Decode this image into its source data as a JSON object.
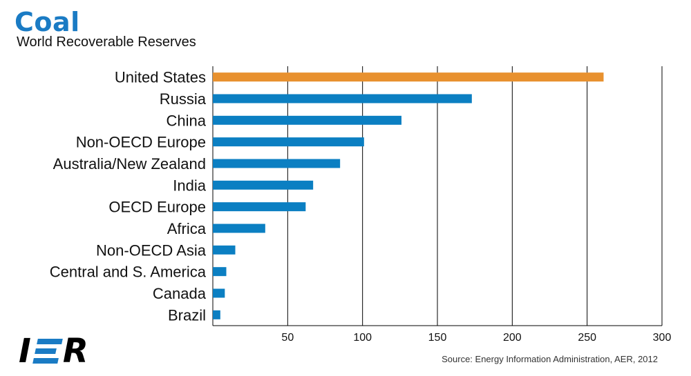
{
  "header": {
    "title": "Coal",
    "subtitle": "World Recoverable Reserves"
  },
  "footer": {
    "source": "Source: Energy Information Administration, AER, 2012",
    "logo_text": "IER"
  },
  "colors": {
    "title": "#1a7bc4",
    "bar_default": "#0b7fc2",
    "bar_highlight": "#e8912f",
    "grid": "#000000"
  },
  "chart_data": {
    "type": "bar",
    "orientation": "horizontal",
    "title": "Coal",
    "subtitle": "World Recoverable Reserves",
    "xlabel": "",
    "ylabel": "",
    "categories": [
      "United States",
      "Russia",
      "China",
      "Non-OECD Europe",
      "Australia/New Zealand",
      "India",
      "OECD Europe",
      "Africa",
      "Non-OECD Asia",
      "Central and S. America",
      "Canada",
      "Brazil"
    ],
    "values": [
      261,
      173,
      126,
      101,
      85,
      67,
      62,
      35,
      15,
      9,
      8,
      5
    ],
    "highlight": "United States",
    "xlim": [
      0,
      300
    ],
    "xticks": [
      50,
      100,
      150,
      200,
      250,
      300
    ],
    "grid": "vertical"
  }
}
